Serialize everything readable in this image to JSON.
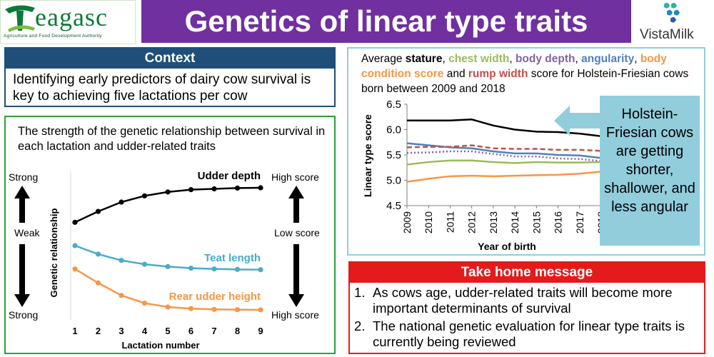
{
  "header": {
    "title": "Genetics of linear type traits",
    "left_logo_word": "eagasc",
    "left_logo_sub": "Agriculture and Food Development Authority",
    "right_logo_word": "VistaMilk"
  },
  "context": {
    "heading": "Context",
    "text": "Identifying early predictors of dairy cow survival is key to achieving five lactations per cow"
  },
  "udder_panel": {
    "caption": "The strength of the genetic relationship between survival in each lactation and udder-related traits",
    "left_labels": {
      "top": "Strong",
      "middle": "Weak",
      "bottom": "Strong"
    },
    "right_labels": {
      "top": "High score",
      "middle": "Low score",
      "bottom": "High score"
    },
    "chart_data": {
      "type": "line",
      "xlabel": "Lactation number",
      "ylabel": "Genetic relationship",
      "x": [
        1,
        2,
        3,
        4,
        5,
        6,
        7,
        8,
        9
      ],
      "series": [
        {
          "name": "Udder depth",
          "color": "#000000",
          "values": [
            0.0,
            0.07,
            0.13,
            0.17,
            0.195,
            0.21,
            0.215,
            0.22,
            0.222
          ]
        },
        {
          "name": "Teat length",
          "color": "#4bacc6",
          "values": [
            -0.15,
            -0.205,
            -0.245,
            -0.27,
            -0.285,
            -0.295,
            -0.3,
            -0.303,
            -0.305
          ]
        },
        {
          "name": "Rear udder height",
          "color": "#f79646",
          "values": [
            -0.3,
            -0.39,
            -0.47,
            -0.52,
            -0.545,
            -0.555,
            -0.56,
            -0.562,
            -0.563
          ]
        }
      ]
    }
  },
  "stature_panel": {
    "caption_parts": [
      {
        "text": "Average ",
        "color": "#000000",
        "bold": false
      },
      {
        "text": "stature",
        "color": "#000000",
        "bold": true
      },
      {
        "text": ", ",
        "color": "#000000",
        "bold": false
      },
      {
        "text": "chest width",
        "color": "#9bbb59",
        "bold": true
      },
      {
        "text": ", ",
        "color": "#000000",
        "bold": false
      },
      {
        "text": "body depth",
        "color": "#8064a2",
        "bold": true
      },
      {
        "text": ", ",
        "color": "#000000",
        "bold": false
      },
      {
        "text": "angularity",
        "color": "#4f81bd",
        "bold": true
      },
      {
        "text": ", ",
        "color": "#000000",
        "bold": false
      },
      {
        "text": "body condition score",
        "color": "#f79646",
        "bold": true
      },
      {
        "text": " and ",
        "color": "#000000",
        "bold": false
      },
      {
        "text": "rump width",
        "color": "#c0504d",
        "bold": true
      },
      {
        "text": " score for Holstein-Friesian cows born between 2009 and 2018",
        "color": "#000000",
        "bold": false
      }
    ],
    "note": "Holstein-Friesian cows are getting shorter, shallower, and less angular",
    "chart_data": {
      "type": "line",
      "xlabel": "Year of birth",
      "ylabel": "Linear type score",
      "ylim": [
        4.5,
        6.5
      ],
      "yticks": [
        "4.5",
        "5.0",
        "5.5",
        "6.0",
        "6.5"
      ],
      "x": [
        "2009",
        "2010",
        "2011",
        "2012",
        "2013",
        "2014",
        "2015",
        "2016",
        "2017",
        "2018"
      ],
      "series": [
        {
          "name": "stature",
          "color": "#000000",
          "dash": false,
          "values": [
            6.18,
            6.18,
            6.18,
            6.2,
            6.08,
            6.0,
            5.96,
            5.95,
            5.92,
            5.87
          ]
        },
        {
          "name": "angularity",
          "color": "#4f81bd",
          "dash": false,
          "values": [
            5.73,
            5.69,
            5.65,
            5.63,
            5.57,
            5.53,
            5.53,
            5.5,
            5.49,
            5.44
          ]
        },
        {
          "name": "rump width",
          "color": "#c0504d",
          "dash": true,
          "values": [
            5.65,
            5.66,
            5.66,
            5.69,
            5.63,
            5.62,
            5.62,
            5.6,
            5.6,
            5.58
          ]
        },
        {
          "name": "body depth",
          "color": "#8064a2",
          "dash": true,
          "values": [
            5.54,
            5.55,
            5.57,
            5.57,
            5.52,
            5.47,
            5.47,
            5.43,
            5.42,
            5.38
          ]
        },
        {
          "name": "chest width",
          "color": "#9bbb59",
          "dash": false,
          "values": [
            5.31,
            5.36,
            5.39,
            5.39,
            5.36,
            5.34,
            5.36,
            5.35,
            5.35,
            5.36
          ]
        },
        {
          "name": "body condition score",
          "color": "#f79646",
          "dash": false,
          "values": [
            4.97,
            5.03,
            5.08,
            5.09,
            5.08,
            5.09,
            5.1,
            5.11,
            5.13,
            5.17
          ]
        }
      ]
    }
  },
  "take_home": {
    "heading": "Take home message",
    "items": [
      {
        "num": "1.",
        "text": "As cows age, udder-related traits will become more important determinants of survival"
      },
      {
        "num": "2.",
        "text": "The national genetic evaluation for linear type traits is currently being reviewed"
      }
    ]
  }
}
